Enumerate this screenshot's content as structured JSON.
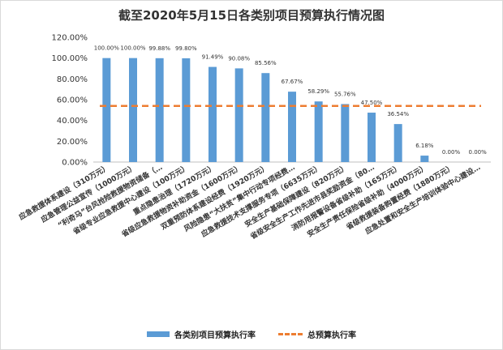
{
  "chart_data": {
    "type": "bar",
    "title": "截至2020年5月15日各类别项目预算执行情况图",
    "categories": [
      "应急救援体系建设（310万元）",
      "应急管理公益宣传（1000万元）",
      "“利奇马”台风抢险救援物资储备（…",
      "省级专业应急救援中心建设（100万元）",
      "重点隐患治理（1720万元）",
      "省级应急救援物资补助资金（1600万元）",
      "双重预防体系建设经费（1920万元）",
      "风险隐患“大扶贫”集中行动专项经费…",
      "应急救援技术支撑服务专项（6635万元）",
      "安全生产基础保障建设（820万元）",
      "省级安全生产工作先进市县奖励资金（80…",
      "消防用报警设备省级补助（165万元）",
      "安全生产责任保险省级补助（4000万元）",
      "省级救援装备购置经费（1880万元）",
      "应急处置和安全生产培训体验中心建设…"
    ],
    "series": [
      {
        "name": "各类别项目预算执行率",
        "type": "bar",
        "color": "#5b9bd5",
        "values": [
          100.0,
          100.0,
          99.88,
          99.8,
          91.49,
          90.08,
          85.56,
          67.67,
          58.29,
          55.76,
          47.5,
          36.54,
          6.18,
          0.0,
          0.0
        ],
        "labels": [
          "100.00%",
          "100.00%",
          "99.88%",
          "99.80%",
          "91.49%",
          "90.08%",
          "85.56%",
          "67.67%",
          "58.29%",
          "55.76%",
          "47.50%",
          "36.54%",
          "6.18%",
          "0.00%",
          "0.00%"
        ]
      },
      {
        "name": "总预算执行率",
        "type": "line",
        "style": "dashed",
        "color": "#ed7d31",
        "value": 54
      }
    ],
    "yticks": [
      "0.00%",
      "20.00%",
      "40.00%",
      "60.00%",
      "80.00%",
      "100.00%",
      "120.00%"
    ],
    "ylim": [
      0,
      120
    ],
    "grid": false,
    "legend_position": "bottom"
  }
}
